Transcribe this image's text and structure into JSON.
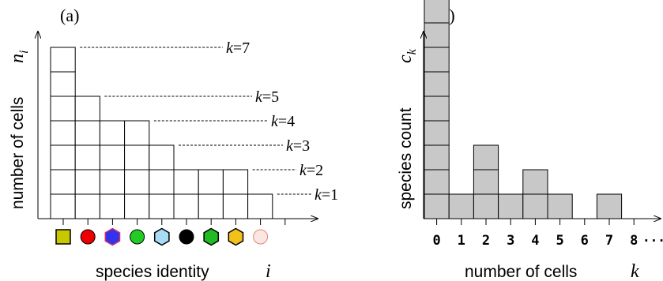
{
  "panel_a": {
    "label": "(a)",
    "y_axis": {
      "text": "number of cells",
      "symbol": "n",
      "subscript": "i"
    },
    "x_axis": {
      "text": "species identity",
      "symbol": "i"
    },
    "column_heights": [
      7,
      5,
      4,
      4,
      3,
      2,
      2,
      2,
      1
    ],
    "level_labels": [
      {
        "k": 7,
        "text": "=7"
      },
      {
        "k": 5,
        "text": "=5"
      },
      {
        "k": 4,
        "text": "=4"
      },
      {
        "k": 3,
        "text": "=3"
      },
      {
        "k": 2,
        "text": "=2"
      },
      {
        "k": 1,
        "text": "=1"
      }
    ],
    "k_symbol": "k",
    "species_icons": [
      {
        "shape": "square",
        "color": "#c8c800"
      },
      {
        "shape": "circle",
        "color": "#ee0000"
      },
      {
        "shape": "hexagon",
        "color": "#3333ee",
        "stroke": "#cc3366"
      },
      {
        "shape": "circle",
        "color": "#22cc22"
      },
      {
        "shape": "hexagon",
        "color": "#a8dcf4"
      },
      {
        "shape": "circle",
        "color": "#000000"
      },
      {
        "shape": "hexagon",
        "color": "#22bb22"
      },
      {
        "shape": "hexagon",
        "color": "#f2c21a"
      },
      {
        "shape": "circle",
        "color": "#fbe6e2",
        "stroke": "#dd8877"
      }
    ]
  },
  "panel_b": {
    "label": "(b)",
    "y_axis": {
      "text": "species count",
      "symbol": "c",
      "subscript": "k"
    },
    "x_axis": {
      "text": "number of cells",
      "symbol": "k"
    },
    "tick_labels": [
      "0",
      "1",
      "2",
      "3",
      "4",
      "5",
      "6",
      "7",
      "8"
    ],
    "tick_ellipsis": "···",
    "bar_color": "#c8c8c8"
  },
  "chart_data": {
    "type": "bar",
    "categories": [
      "0",
      "1",
      "2",
      "3",
      "4",
      "5",
      "6",
      "7",
      "8"
    ],
    "values": [
      9,
      1,
      3,
      1,
      2,
      1,
      0,
      1,
      0
    ],
    "title": "(b)",
    "xlabel": "number of cells k",
    "ylabel": "species count c_k"
  }
}
